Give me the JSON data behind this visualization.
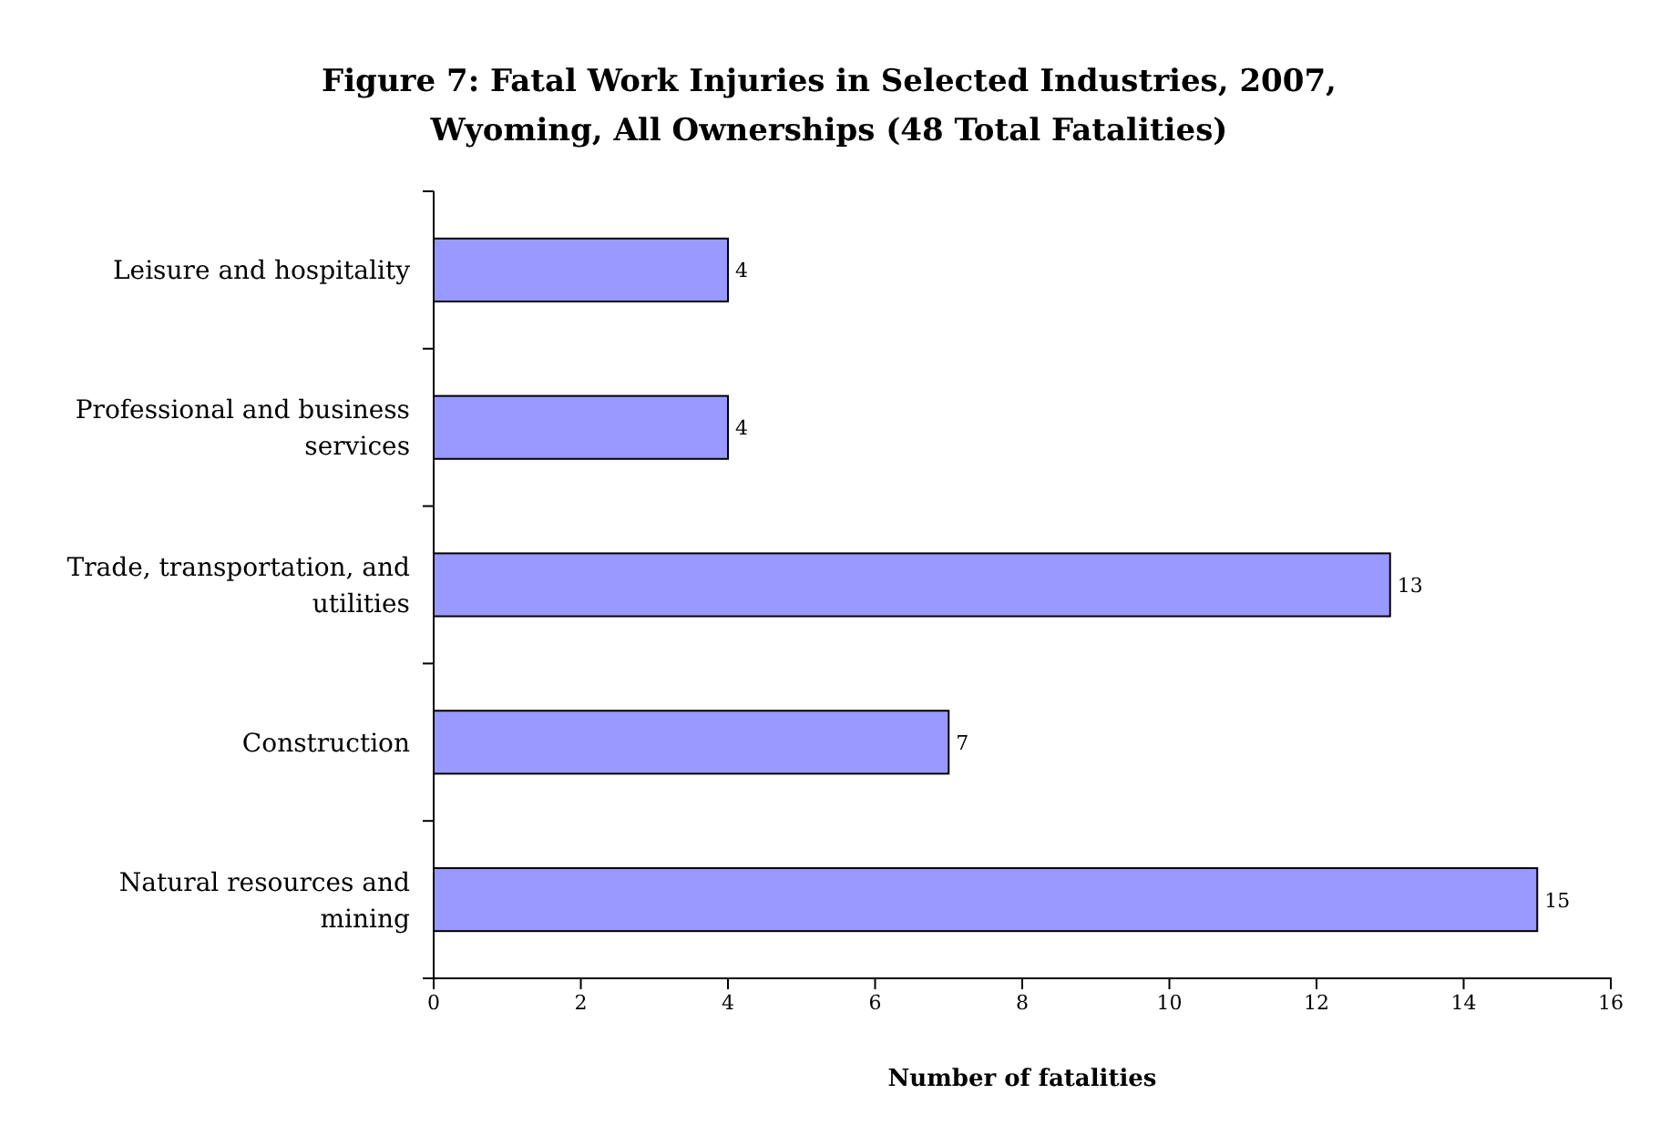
{
  "chart_data": {
    "type": "bar",
    "orientation": "horizontal",
    "title": "Figure 7: Fatal Work Injuries in Selected Industries, 2007, Wyoming, All Ownerships (48 Total Fatalities)",
    "xlabel": "Number of fatalities",
    "categories": [
      "Leisure and hospitality",
      "Professional and business services",
      "Trade, transportation, and utilities",
      "Construction",
      "Natural resources and mining"
    ],
    "values": [
      4,
      4,
      13,
      7,
      15
    ],
    "color": "#9999ff",
    "xlim": [
      0,
      16
    ],
    "xticks": [
      0,
      2,
      4,
      6,
      8,
      10,
      12,
      14,
      16
    ],
    "data_labels": true
  }
}
